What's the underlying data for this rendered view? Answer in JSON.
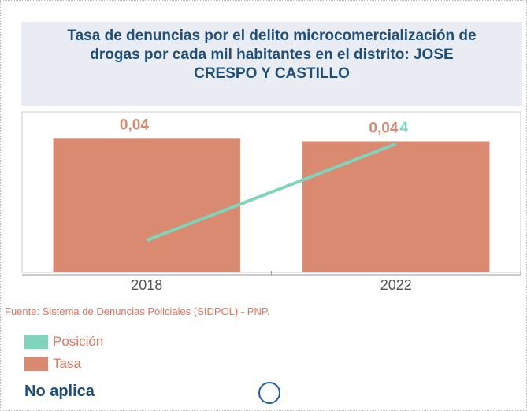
{
  "chart_data": {
    "type": "bar",
    "title": "Tasa de denuncias por el delito microcomercialización de drogas por cada mil habitantes en el distrito: JOSE CRESPO Y CASTILLO",
    "categories": [
      "2018",
      "2022"
    ],
    "series": [
      {
        "name": "Posición",
        "type": "line",
        "color": "#7fd4bb",
        "axis": "y2",
        "values": [
          1,
          4
        ]
      },
      {
        "name": "Tasa",
        "type": "bar",
        "color": "#d98a70",
        "values": [
          0.041,
          0.04
        ],
        "value_labels": [
          "0,04",
          "0,04"
        ]
      }
    ],
    "ylim": [
      0,
      0.049
    ],
    "y2lim": [
      0,
      5
    ],
    "source": "Fuente: Sistema de Denuncias Policiales (SIDPOL) - PNP.",
    "note": "No aplica"
  }
}
